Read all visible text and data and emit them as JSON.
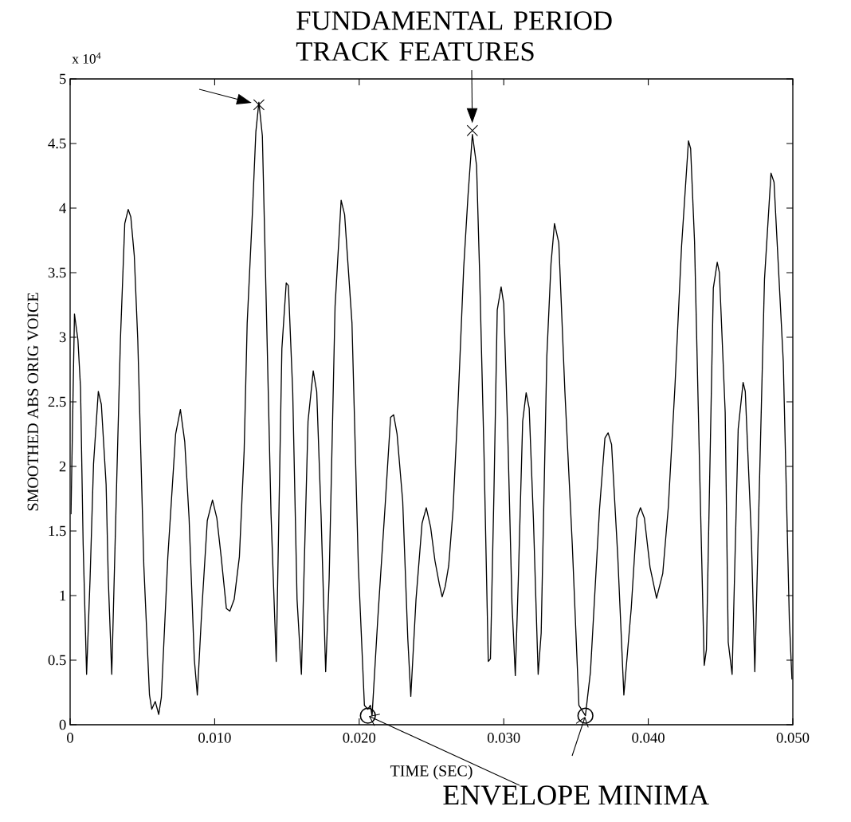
{
  "chart_data": {
    "type": "line",
    "xlabel": "TIME (SEC)",
    "ylabel": "SMOOTHED ABS ORIG VOICE",
    "annotations": [
      "x 10$^{4}$",
      {
        "text": "FUNDAMENTAL PERIOD TRACK FEATURES",
        "x": 0.01306,
        "y": 4.8
      },
      {
        "text": "ENVELOPE MINIMA",
        "x": 0.0206,
        "y": 0.07
      }
    ],
    "xlim": [
      0,
      0.05
    ],
    "ylim": [
      0,
      5
    ],
    "xticks": [
      0,
      {
        "value": 0.01,
        "label": "0.010"
      },
      {
        "value": 0.02,
        "label": "0.020"
      },
      {
        "value": 0.03,
        "label": "0.030"
      },
      {
        "value": 0.04,
        "label": "0.040"
      },
      {
        "value": 0.05,
        "label": "0.050"
      }
    ],
    "yticks": [
      0,
      0.5,
      1,
      1.5,
      2,
      2.5,
      3,
      3.5,
      4,
      4.5,
      5
    ],
    "series": [
      {
        "color": "#000000",
        "marker": "none",
        "line_style": "solid",
        "x": [
          6e-05,
          0.0003,
          0.00054,
          0.00072,
          0.0009,
          0.00114,
          0.00138,
          0.00162,
          0.00195,
          0.00216,
          0.00249,
          0.00264,
          0.00288,
          0.00324,
          0.00348,
          0.00378,
          0.00402,
          0.0042,
          0.00444,
          0.00468,
          0.0051,
          0.00549,
          0.00565,
          0.00589,
          0.00613,
          0.00631,
          0.00676,
          0.0073,
          0.00763,
          0.00793,
          0.00823,
          0.00859,
          0.0088,
          0.0091,
          0.00949,
          0.00985,
          0.01015,
          0.01045,
          0.01081,
          0.01105,
          0.01135,
          0.01171,
          0.01204,
          0.01225,
          0.01261,
          0.01285,
          0.01306,
          0.0133,
          0.0136,
          0.0139,
          0.01426,
          0.01465,
          0.01495,
          0.0151,
          0.0154,
          0.0157,
          0.016,
          0.01646,
          0.01682,
          0.01706,
          0.01736,
          0.01768,
          0.01792,
          0.01833,
          0.01875,
          0.01899,
          0.0195,
          0.01994,
          0.02036,
          0.0206,
          0.02077,
          0.02089,
          0.02128,
          0.02179,
          0.02217,
          0.02238,
          0.02262,
          0.02301,
          0.02336,
          0.02357,
          0.02393,
          0.02435,
          0.02464,
          0.02494,
          0.02524,
          0.02554,
          0.02574,
          0.02595,
          0.02619,
          0.02649,
          0.02685,
          0.02723,
          0.02753,
          0.02783,
          0.02812,
          0.02833,
          0.02863,
          0.02893,
          0.02908,
          0.02932,
          0.02955,
          0.02982,
          0.03,
          0.03027,
          0.03057,
          0.0308,
          0.03101,
          0.03131,
          0.03155,
          0.03176,
          0.03205,
          0.03238,
          0.03259,
          0.03298,
          0.03327,
          0.03351,
          0.03381,
          0.03423,
          0.03474,
          0.0352,
          0.03565,
          0.036,
          0.03662,
          0.037,
          0.03722,
          0.03746,
          0.03789,
          0.03831,
          0.03882,
          0.03921,
          0.03946,
          0.03973,
          0.04012,
          0.04057,
          0.041,
          0.04139,
          0.04184,
          0.0423,
          0.04278,
          0.04293,
          0.0432,
          0.04359,
          0.04387,
          0.04402,
          0.0445,
          0.04477,
          0.04492,
          0.04532,
          0.04553,
          0.0458,
          0.04622,
          0.04656,
          0.04671,
          0.04713,
          0.04737,
          0.04804,
          0.04849,
          0.0487,
          0.04934,
          0.04976,
          0.04994
        ],
        "values": [
          1.63,
          3.18,
          2.98,
          2.61,
          1.4,
          0.39,
          1.13,
          2.02,
          2.58,
          2.48,
          1.86,
          1.13,
          0.39,
          1.96,
          2.98,
          3.88,
          3.99,
          3.93,
          3.63,
          2.98,
          1.23,
          0.23,
          0.12,
          0.18,
          0.08,
          0.21,
          1.3,
          2.25,
          2.44,
          2.19,
          1.6,
          0.51,
          0.23,
          0.87,
          1.58,
          1.74,
          1.6,
          1.3,
          0.9,
          0.88,
          0.97,
          1.3,
          2.12,
          3.11,
          3.96,
          4.59,
          4.82,
          4.56,
          3.11,
          1.63,
          0.49,
          2.91,
          3.42,
          3.4,
          2.58,
          0.97,
          0.39,
          2.35,
          2.74,
          2.58,
          1.63,
          0.41,
          1.13,
          3.24,
          4.06,
          3.95,
          3.11,
          1.23,
          0.15,
          0.12,
          0.15,
          0.07,
          0.81,
          1.69,
          2.38,
          2.4,
          2.25,
          1.73,
          0.67,
          0.22,
          0.97,
          1.56,
          1.68,
          1.53,
          1.27,
          1.09,
          0.99,
          1.07,
          1.23,
          1.66,
          2.52,
          3.54,
          4.1,
          4.57,
          4.33,
          3.5,
          2.12,
          0.49,
          0.51,
          1.79,
          3.21,
          3.39,
          3.26,
          2.29,
          0.94,
          0.38,
          1.13,
          2.35,
          2.57,
          2.45,
          1.6,
          0.39,
          0.71,
          2.85,
          3.57,
          3.88,
          3.73,
          2.58,
          1.4,
          0.15,
          0.07,
          0.41,
          1.66,
          2.22,
          2.26,
          2.17,
          1.3,
          0.23,
          0.9,
          1.6,
          1.68,
          1.6,
          1.22,
          0.98,
          1.17,
          1.69,
          2.61,
          3.7,
          4.52,
          4.46,
          3.74,
          1.79,
          0.46,
          0.58,
          3.38,
          3.58,
          3.5,
          2.42,
          0.64,
          0.39,
          2.29,
          2.65,
          2.58,
          1.46,
          0.41,
          3.45,
          4.27,
          4.2,
          2.81,
          0.81,
          0.35
        ]
      },
      {
        "type": "scatter",
        "color": "#000000",
        "marker": "cross",
        "x": [
          0.01306,
          0.02783
        ],
        "values": [
          4.8,
          4.6
        ]
      },
      {
        "type": "scatter",
        "color": "#000000",
        "marker": "circle",
        "x": [
          0.0206,
          0.03565
        ],
        "values": [
          0.07,
          0.07
        ]
      }
    ]
  }
}
